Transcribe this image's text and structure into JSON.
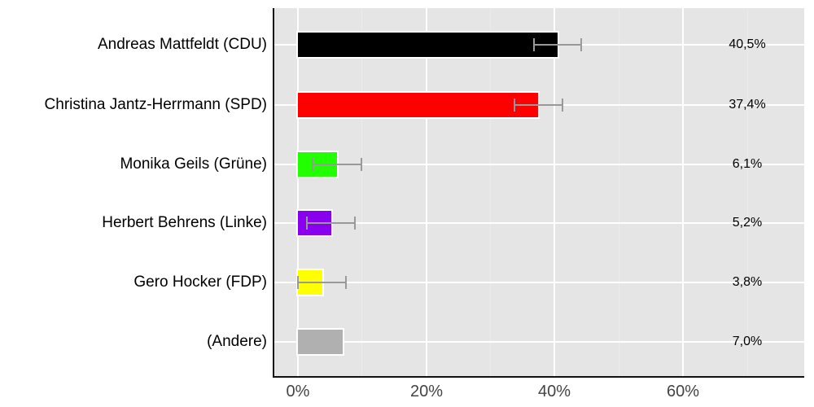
{
  "chart_data": {
    "type": "bar",
    "orientation": "horizontal",
    "title": "",
    "xlabel": "",
    "ylabel": "",
    "xlim": [
      -4,
      78.5
    ],
    "x_ticks": [
      "0%",
      "20%",
      "40%",
      "60%"
    ],
    "grid": true,
    "legend": "none",
    "categories": [
      "Andreas Mattfeldt (CDU)",
      "Christina Jantz-Herrmann (SPD)",
      "Monika Geils (Grüne)",
      "Herbert Behrens (Linke)",
      "Gero Hocker (FDP)",
      "(Andere)"
    ],
    "values": [
      40.5,
      37.4,
      6.1,
      5.2,
      3.8,
      7.0
    ],
    "value_labels": [
      "40,5%",
      "37,4%",
      "6,1%",
      "5,2%",
      "3,8%",
      "7,0%"
    ],
    "colors": [
      "#000000",
      "#ff0000",
      "#22ff00",
      "#8800ee",
      "#ffff00",
      "#b0b0b0"
    ],
    "error_bars": [
      {
        "low": 36.8,
        "high": 44.2
      },
      {
        "low": 33.7,
        "high": 41.3
      },
      {
        "low": 2.3,
        "high": 9.9
      },
      {
        "low": 1.4,
        "high": 8.9
      },
      {
        "low": 0.0,
        "high": 7.5
      },
      null
    ]
  }
}
